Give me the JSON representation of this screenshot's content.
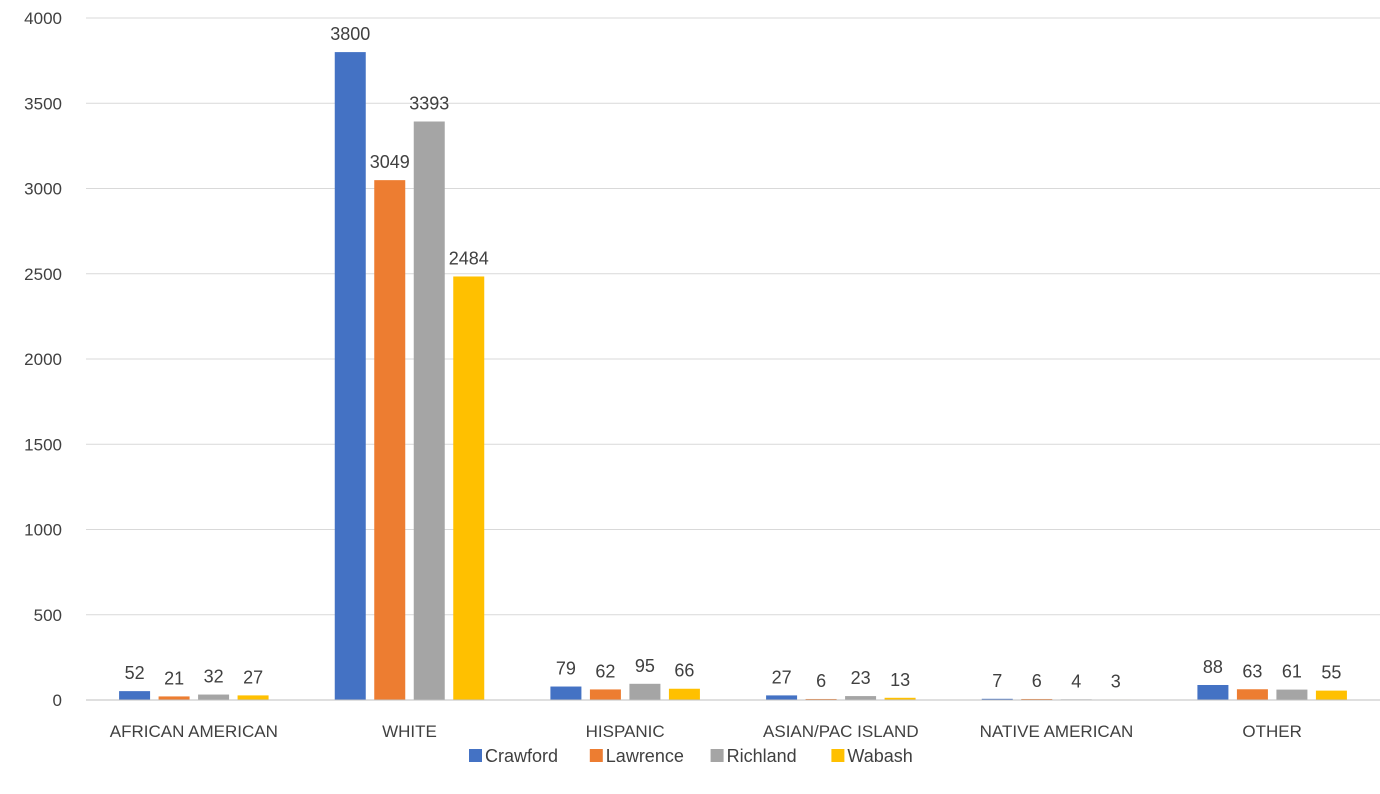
{
  "chart_data": {
    "type": "bar",
    "title": "",
    "xlabel": "",
    "ylabel": "",
    "categories": [
      "AFRICAN AMERICAN",
      "WHITE",
      "HISPANIC",
      "ASIAN/PAC ISLAND",
      "NATIVE AMERICAN",
      "OTHER"
    ],
    "series": [
      {
        "name": "Crawford",
        "color": "#4472C4",
        "values": [
          52,
          3800,
          79,
          27,
          7,
          88
        ]
      },
      {
        "name": "Lawrence",
        "color": "#ED7D31",
        "values": [
          21,
          3049,
          62,
          6,
          6,
          63
        ]
      },
      {
        "name": "Richland",
        "color": "#A5A5A5",
        "values": [
          32,
          3393,
          95,
          23,
          4,
          61
        ]
      },
      {
        "name": "Wabash",
        "color": "#FFC000",
        "values": [
          27,
          2484,
          66,
          13,
          3,
          55
        ]
      }
    ],
    "yticks": [
      0,
      500,
      1000,
      1500,
      2000,
      2500,
      3000,
      3500,
      4000
    ],
    "ylim": [
      0,
      4000
    ],
    "grid": true,
    "legend": "bottom",
    "data_labels": true
  }
}
